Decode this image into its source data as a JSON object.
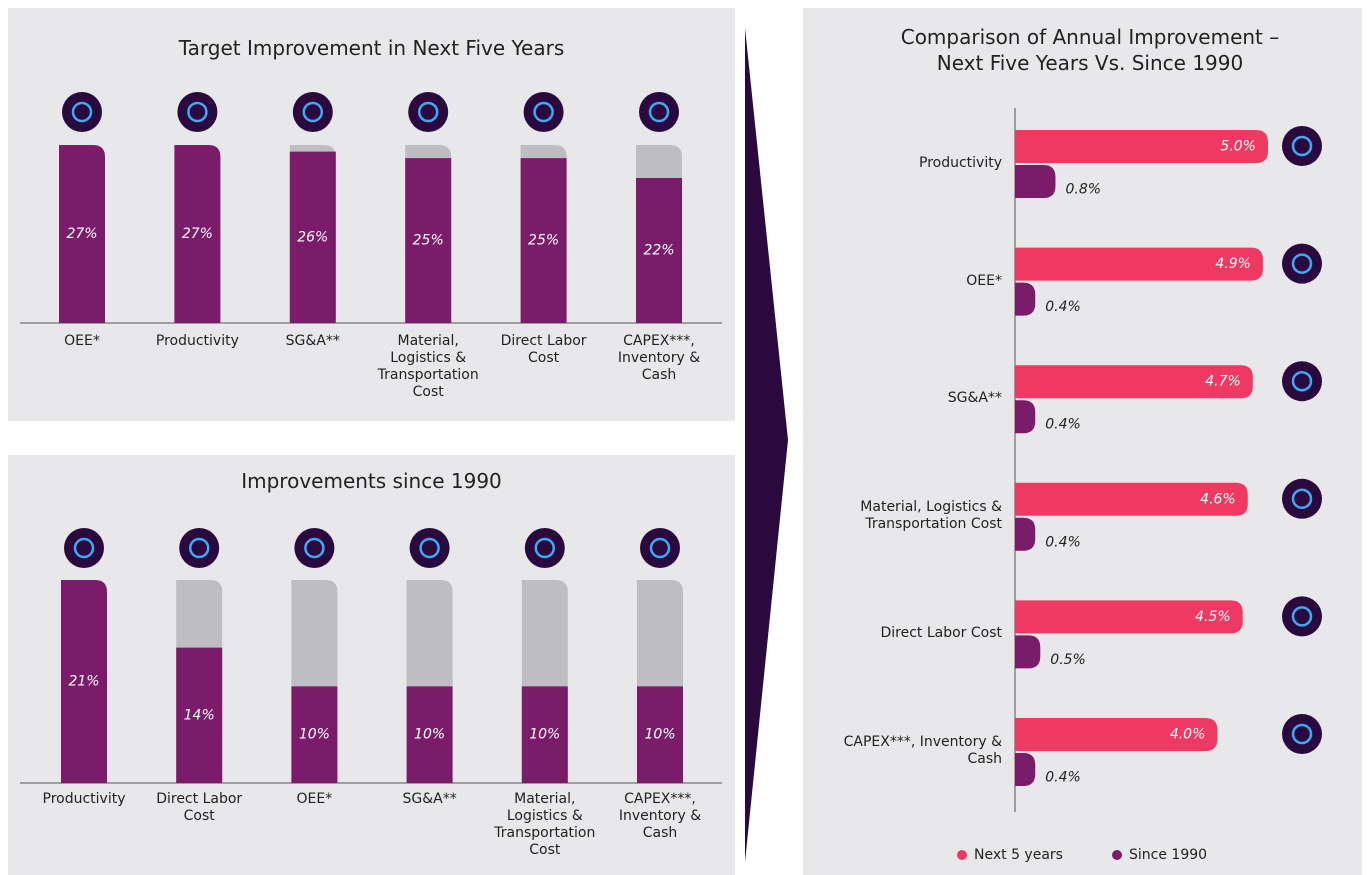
{
  "chart_data": [
    {
      "type": "bar",
      "title": "Target Improvement in Next Five Years",
      "categories": [
        "OEE*",
        "Productivity",
        "SG&A**",
        "Material, Logistics & Transportation Cost",
        "Direct Labor Cost",
        "CAPEX***, Inventory & Cash"
      ],
      "values": [
        27,
        27,
        26,
        25,
        25,
        22
      ],
      "value_labels": [
        "27%",
        "27%",
        "26%",
        "25%",
        "25%",
        "22%"
      ],
      "color": "#7b1c6b",
      "track_color": "#bdbdc2",
      "ylim": [
        0,
        27
      ]
    },
    {
      "type": "bar",
      "title": "Improvements since 1990",
      "categories": [
        "Productivity",
        "Direct Labor Cost",
        "OEE*",
        "SG&A**",
        "Material, Logistics & Transportation Cost",
        "CAPEX***, Inventory & Cash"
      ],
      "values": [
        21,
        14,
        10,
        10,
        10,
        10
      ],
      "value_labels": [
        "21%",
        "14%",
        "10%",
        "10%",
        "10%",
        "10%"
      ],
      "color": "#7b1c6b",
      "track_color": "#bdbdc2",
      "ylim": [
        0,
        21
      ]
    },
    {
      "type": "hbar",
      "title": "Comparison of Annual Improvement – Next Five Years Vs. Since 1990",
      "categories": [
        "Productivity",
        "OEE*",
        "SG&A**",
        "Material, Logistics & Transportation Cost",
        "Direct Labor Cost",
        "CAPEX***, Inventory & Cash"
      ],
      "series": [
        {
          "name": "Next 5 years",
          "color": "#ee3a62",
          "values": [
            5.0,
            4.9,
            4.7,
            4.6,
            4.5,
            4.0
          ],
          "value_labels": [
            "5.0%",
            "4.9%",
            "4.7%",
            "4.6%",
            "4.5%",
            "4.0%"
          ]
        },
        {
          "name": "Since 1990",
          "color": "#7b1c6b",
          "values": [
            0.8,
            0.4,
            0.4,
            0.4,
            0.5,
            0.4
          ],
          "value_labels": [
            "0.8%",
            "0.4%",
            "0.4%",
            "0.4%",
            "0.5%",
            "0.4%"
          ]
        }
      ],
      "xlim": [
        0,
        5
      ],
      "legend": "bottom"
    }
  ]
}
